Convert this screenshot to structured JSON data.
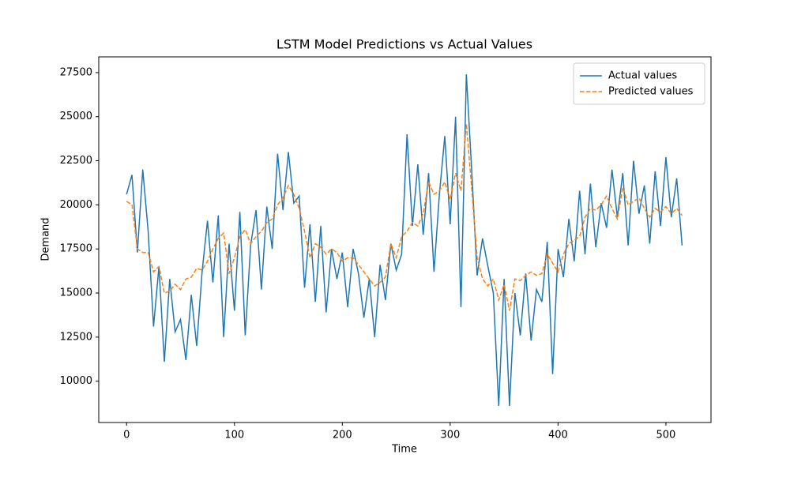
{
  "chart_data": {
    "type": "line",
    "title": "LSTM Model Predictions vs Actual Values",
    "x_label": "Time",
    "y_label": "Demand",
    "x": [
      0,
      5,
      10,
      15,
      20,
      25,
      30,
      35,
      40,
      45,
      50,
      55,
      60,
      65,
      70,
      75,
      80,
      85,
      90,
      95,
      100,
      105,
      110,
      115,
      120,
      125,
      130,
      135,
      140,
      145,
      150,
      155,
      160,
      165,
      170,
      175,
      180,
      185,
      190,
      195,
      200,
      205,
      210,
      215,
      220,
      225,
      230,
      235,
      240,
      245,
      250,
      255,
      260,
      265,
      270,
      275,
      280,
      285,
      290,
      295,
      300,
      305,
      310,
      315,
      320,
      325,
      330,
      335,
      340,
      345,
      350,
      355,
      360,
      365,
      370,
      375,
      380,
      385,
      390,
      395,
      400,
      405,
      410,
      415,
      420,
      425,
      430,
      435,
      440,
      445,
      450,
      455,
      460,
      465,
      470,
      475,
      480,
      485,
      490,
      495,
      500,
      505,
      510,
      515
    ],
    "series": [
      {
        "name": "Actual values",
        "color": "#1f77b4",
        "dash": "solid",
        "values": [
          20600,
          21700,
          17300,
          22000,
          18500,
          13100,
          16500,
          11100,
          15800,
          12800,
          13500,
          11200,
          14900,
          12000,
          16200,
          19100,
          15600,
          19400,
          12500,
          17800,
          14000,
          19600,
          12600,
          17700,
          19700,
          15200,
          19900,
          17500,
          22900,
          19700,
          23000,
          20100,
          20500,
          15300,
          18900,
          14500,
          18800,
          13900,
          17500,
          15800,
          17300,
          14200,
          17500,
          16100,
          13600,
          15800,
          12500,
          16600,
          14600,
          17800,
          16300,
          17200,
          24000,
          18800,
          22300,
          18300,
          21800,
          16200,
          20600,
          23900,
          18900,
          25000,
          14200,
          27400,
          21900,
          16000,
          18100,
          16500,
          15000,
          8600,
          15800,
          8600,
          15000,
          12600,
          16100,
          12300,
          15200,
          14500,
          17900,
          10400,
          17500,
          15900,
          19200,
          16800,
          20800,
          17200,
          21200,
          17600,
          20100,
          18700,
          22000,
          19300,
          21800,
          17700,
          22500,
          19500,
          21100,
          17800,
          21900,
          18800,
          22700,
          19300,
          21500,
          17700
        ]
      },
      {
        "name": "Predicted values",
        "color": "#ff7f0e",
        "dash": "dashed",
        "values": [
          20200,
          20000,
          17500,
          17300,
          17300,
          16200,
          16500,
          15000,
          15100,
          15500,
          15200,
          15800,
          15900,
          16400,
          16300,
          16800,
          17500,
          18100,
          18400,
          16100,
          17000,
          18200,
          18600,
          17800,
          18200,
          18500,
          19000,
          19200,
          20000,
          20400,
          21100,
          20600,
          19800,
          18500,
          17000,
          17800,
          17600,
          17200,
          17500,
          17300,
          16800,
          17000,
          17000,
          16600,
          16200,
          15800,
          15400,
          15600,
          15900,
          17800,
          17000,
          18200,
          18500,
          19000,
          18800,
          19500,
          21300,
          20600,
          20800,
          21300,
          20300,
          21800,
          20800,
          24600,
          20900,
          17000,
          15800,
          15400,
          15800,
          14600,
          15500,
          14000,
          15800,
          15700,
          16000,
          16200,
          16000,
          16100,
          17200,
          16700,
          16200,
          17200,
          17800,
          18000,
          18200,
          19300,
          19800,
          19700,
          20000,
          20500,
          19800,
          19200,
          21000,
          20000,
          20200,
          20400,
          19800,
          19300,
          19800,
          19600,
          19900,
          19500,
          19800,
          19400
        ]
      }
    ],
    "xlim": [
      -25.8,
      541.8
    ],
    "ylim": [
      7658,
      28392
    ],
    "xticks": [
      0,
      100,
      200,
      300,
      400,
      500
    ],
    "yticks": [
      10000,
      12500,
      15000,
      17500,
      20000,
      22500,
      25000,
      27500
    ],
    "grid": false,
    "legend": "upper right"
  }
}
